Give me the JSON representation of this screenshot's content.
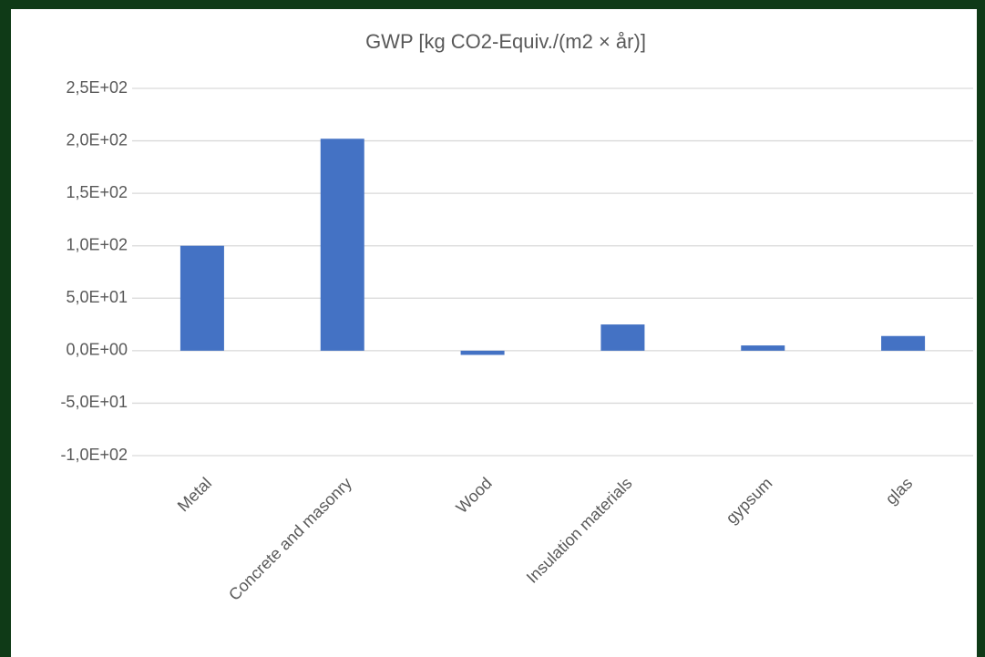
{
  "chart_data": {
    "type": "bar",
    "title": "GWP [kg CO2-Equiv./(m2 × år)]",
    "categories": [
      "Metal",
      "Concrete and masonry",
      "Wood",
      "Insulation materials",
      "gypsum",
      "glas"
    ],
    "values": [
      100,
      202,
      -4,
      25,
      5,
      14
    ],
    "color": "#4472c4",
    "ylim": [
      -100,
      250
    ],
    "yticks": [
      {
        "value": -100,
        "label": "-1,0E+02"
      },
      {
        "value": -50,
        "label": "-5,0E+01"
      },
      {
        "value": 0,
        "label": "0,0E+00"
      },
      {
        "value": 50,
        "label": "5,0E+01"
      },
      {
        "value": 100,
        "label": "1,0E+02"
      },
      {
        "value": 150,
        "label": "1,5E+02"
      },
      {
        "value": 200,
        "label": "2,0E+02"
      },
      {
        "value": 250,
        "label": "2,5E+02"
      }
    ],
    "grid": true
  }
}
